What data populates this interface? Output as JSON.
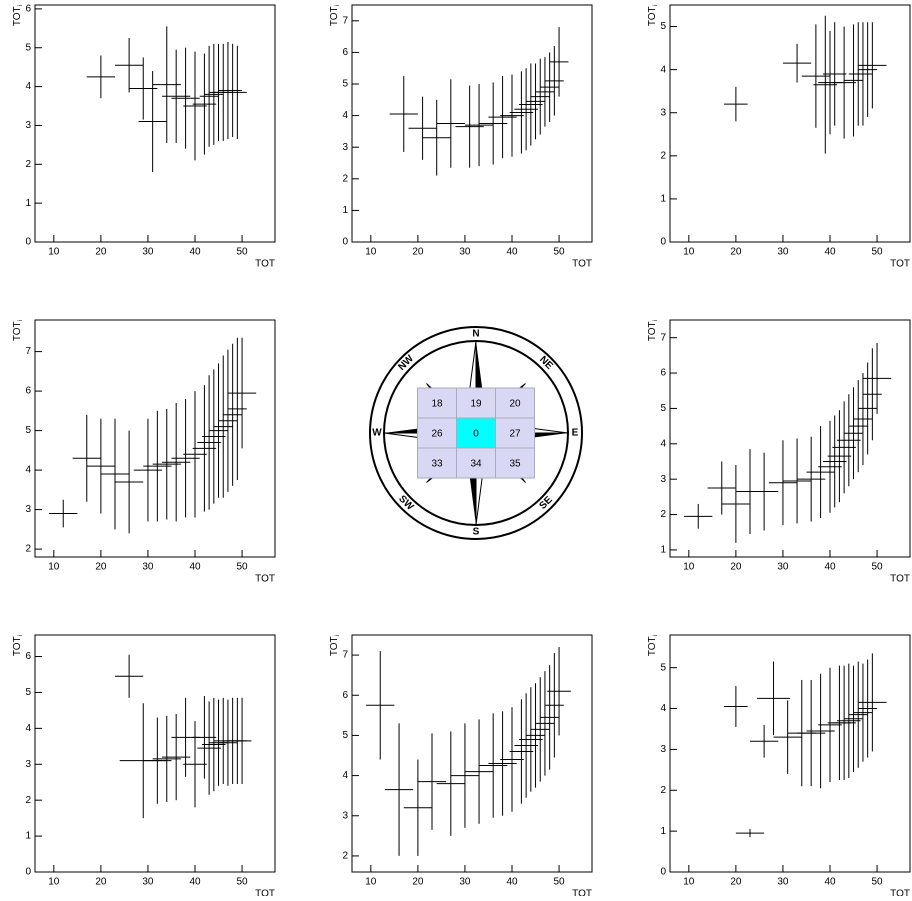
{
  "chart_data": [
    {
      "type": "errorbar",
      "x_label": "TOT",
      "y_label": "TOT",
      "y_label_sub": "i",
      "xlim": [
        6,
        57
      ],
      "ylim": [
        0,
        6.1
      ],
      "xticks": [
        10,
        20,
        30,
        40,
        50
      ],
      "yticks": [
        0,
        1,
        2,
        3,
        4,
        5,
        6
      ],
      "color": "#000000",
      "x": [
        20,
        26,
        29,
        31,
        34,
        36,
        38,
        40,
        42,
        43,
        44,
        45,
        46,
        47,
        48,
        49
      ],
      "xerr": [
        3,
        3,
        3,
        3,
        3,
        3,
        3,
        2.5,
        2.5,
        2,
        2,
        2,
        2,
        2,
        2,
        2
      ],
      "values": [
        4.25,
        4.55,
        3.95,
        3.1,
        4.05,
        3.75,
        3.7,
        3.5,
        3.55,
        3.75,
        3.8,
        3.85,
        3.85,
        3.9,
        3.9,
        3.85
      ],
      "yerr": [
        0.55,
        0.7,
        0.8,
        1.3,
        1.5,
        1.2,
        1.3,
        1.4,
        1.3,
        1.3,
        1.3,
        1.25,
        1.25,
        1.25,
        1.2,
        1.2
      ]
    },
    {
      "type": "errorbar",
      "x_label": "TOT",
      "y_label": "TOT",
      "y_label_sub": "i",
      "xlim": [
        6,
        57
      ],
      "ylim": [
        0,
        7.5
      ],
      "xticks": [
        10,
        20,
        30,
        40,
        50
      ],
      "yticks": [
        0,
        1,
        2,
        3,
        4,
        5,
        6,
        7
      ],
      "color": "#000000",
      "x": [
        17,
        21,
        24,
        27,
        31,
        33,
        36,
        38,
        40,
        42,
        43,
        44,
        45,
        46,
        47,
        48,
        49,
        50
      ],
      "xerr": [
        3,
        3,
        3,
        3,
        3,
        3,
        3,
        3,
        2.5,
        2.5,
        2.5,
        2.5,
        2,
        2,
        2,
        2,
        2,
        2
      ],
      "values": [
        4.05,
        3.6,
        3.3,
        3.75,
        3.65,
        3.7,
        3.75,
        3.95,
        4.0,
        4.1,
        4.2,
        4.35,
        4.45,
        4.6,
        4.75,
        4.9,
        5.1,
        5.7
      ],
      "yerr": [
        1.2,
        1.0,
        1.2,
        1.4,
        1.3,
        1.3,
        1.3,
        1.3,
        1.3,
        1.3,
        1.3,
        1.3,
        1.2,
        1.2,
        1.1,
        1.1,
        1.1,
        1.1
      ]
    },
    {
      "type": "errorbar",
      "x_label": "TOT",
      "y_label": "TOT",
      "y_label_sub": "i",
      "xlim": [
        6,
        57
      ],
      "ylim": [
        0,
        5.5
      ],
      "xticks": [
        10,
        20,
        30,
        40,
        50
      ],
      "yticks": [
        0,
        1,
        2,
        3,
        4,
        5
      ],
      "color": "#000000",
      "x": [
        20,
        33,
        37,
        39,
        40,
        41,
        43,
        45,
        46,
        47,
        48,
        49
      ],
      "xerr": [
        2.5,
        3,
        3,
        2.5,
        2.5,
        2.5,
        2.5,
        2,
        2,
        2,
        2,
        3
      ],
      "values": [
        3.2,
        4.15,
        3.85,
        3.65,
        3.7,
        3.9,
        3.7,
        3.75,
        3.9,
        3.9,
        4.0,
        4.1
      ],
      "yerr": [
        0.4,
        0.45,
        1.2,
        1.6,
        1.2,
        1.2,
        1.3,
        1.3,
        1.2,
        1.2,
        1.1,
        1.0
      ]
    },
    {
      "type": "errorbar",
      "x_label": "TOT",
      "y_label": "TOT",
      "y_label_sub": "i",
      "xlim": [
        6,
        57
      ],
      "ylim": [
        1.8,
        7.8
      ],
      "xticks": [
        10,
        20,
        30,
        40,
        50
      ],
      "yticks": [
        2,
        3,
        4,
        5,
        6,
        7
      ],
      "color": "#000000",
      "x": [
        12,
        17,
        20,
        23,
        26,
        30,
        32,
        34,
        36,
        38,
        40,
        42,
        43,
        44,
        45,
        46,
        47,
        48,
        49,
        50
      ],
      "xerr": [
        3,
        3,
        3,
        3,
        3,
        3,
        3,
        3,
        3,
        3,
        2.5,
        2.5,
        2.5,
        2.5,
        2,
        2,
        2,
        2,
        2,
        3
      ],
      "values": [
        2.9,
        4.3,
        4.1,
        3.9,
        3.7,
        4.0,
        4.1,
        4.15,
        4.2,
        4.3,
        4.4,
        4.55,
        4.7,
        4.85,
        5.0,
        5.1,
        5.25,
        5.4,
        5.55,
        5.95
      ],
      "yerr": [
        0.35,
        1.1,
        1.2,
        1.4,
        1.3,
        1.3,
        1.4,
        1.4,
        1.5,
        1.5,
        1.6,
        1.6,
        1.7,
        1.7,
        1.7,
        1.8,
        1.8,
        1.8,
        1.8,
        1.4
      ]
    },
    {
      "type": "errorbar",
      "x_label": "TOT",
      "y_label": "TOT",
      "y_label_sub": "i",
      "xlim": [
        6,
        57
      ],
      "ylim": [
        0.8,
        7.5
      ],
      "xticks": [
        10,
        20,
        30,
        40,
        50
      ],
      "yticks": [
        1,
        2,
        3,
        4,
        5,
        6,
        7
      ],
      "color": "#000000",
      "x": [
        12,
        17,
        20,
        23,
        26,
        30,
        33,
        36,
        38,
        40,
        41,
        42,
        43,
        44,
        45,
        46,
        47,
        48,
        49,
        50
      ],
      "xerr": [
        3,
        3,
        3,
        3,
        3,
        3,
        3,
        3,
        3,
        2.5,
        2.5,
        2.5,
        2.5,
        2.5,
        2,
        2,
        2,
        2,
        2,
        3
      ],
      "values": [
        1.95,
        2.75,
        2.3,
        2.65,
        2.65,
        2.9,
        2.95,
        3.0,
        3.2,
        3.35,
        3.5,
        3.65,
        3.9,
        4.1,
        4.3,
        4.5,
        4.7,
        5.0,
        5.4,
        5.85
      ],
      "yerr": [
        0.35,
        0.75,
        1.1,
        1.2,
        1.1,
        1.2,
        1.2,
        1.2,
        1.3,
        1.3,
        1.3,
        1.3,
        1.3,
        1.3,
        1.3,
        1.3,
        1.3,
        1.3,
        1.3,
        1.0
      ]
    },
    {
      "type": "errorbar",
      "x_label": "TOT",
      "y_label": "TOT",
      "y_label_sub": "i",
      "xlim": [
        6,
        57
      ],
      "ylim": [
        0,
        6.6
      ],
      "xticks": [
        10,
        20,
        30,
        40,
        50
      ],
      "yticks": [
        0,
        1,
        2,
        3,
        4,
        5,
        6
      ],
      "color": "#000000",
      "x": [
        26,
        29,
        32,
        34,
        36,
        38,
        40,
        42,
        43,
        44,
        45,
        46,
        47,
        48,
        49,
        50
      ],
      "xerr": [
        3,
        5,
        3,
        3,
        3,
        3,
        2.5,
        2.5,
        2.5,
        2.5,
        2,
        2,
        2,
        2,
        2,
        2
      ],
      "values": [
        5.45,
        3.1,
        3.1,
        3.15,
        3.2,
        3.75,
        3.0,
        3.75,
        3.45,
        3.55,
        3.6,
        3.65,
        3.6,
        3.65,
        3.65,
        3.65
      ],
      "yerr": [
        0.6,
        1.6,
        1.2,
        1.2,
        1.2,
        1.1,
        1.2,
        1.15,
        1.3,
        1.3,
        1.2,
        1.2,
        1.2,
        1.2,
        1.2,
        1.2
      ]
    },
    {
      "type": "errorbar",
      "x_label": "TOT",
      "y_label": "TOT",
      "y_label_sub": "i",
      "xlim": [
        6,
        57
      ],
      "ylim": [
        1.6,
        7.5
      ],
      "xticks": [
        10,
        20,
        30,
        40,
        50
      ],
      "yticks": [
        2,
        3,
        4,
        5,
        6,
        7
      ],
      "color": "#000000",
      "x": [
        12,
        16,
        20,
        23,
        27,
        30,
        33,
        36,
        38,
        40,
        42,
        43,
        44,
        45,
        46,
        47,
        48,
        49,
        50
      ],
      "xerr": [
        3,
        3,
        3,
        3,
        3,
        3,
        3,
        3,
        3,
        2.5,
        2.5,
        2.5,
        2.5,
        2,
        2,
        2,
        2,
        2,
        2.5
      ],
      "values": [
        5.75,
        3.65,
        3.2,
        3.85,
        3.8,
        4.0,
        4.1,
        4.25,
        4.3,
        4.4,
        4.6,
        4.75,
        4.9,
        5.0,
        5.15,
        5.3,
        5.45,
        5.75,
        6.1
      ],
      "yerr": [
        1.35,
        1.65,
        1.2,
        1.2,
        1.3,
        1.3,
        1.3,
        1.3,
        1.3,
        1.3,
        1.3,
        1.3,
        1.3,
        1.3,
        1.3,
        1.3,
        1.3,
        1.3,
        1.1
      ]
    },
    {
      "type": "errorbar",
      "x_label": "TOT",
      "y_label": "TOT",
      "y_label_sub": "i",
      "xlim": [
        6,
        57
      ],
      "ylim": [
        0,
        5.8
      ],
      "xticks": [
        10,
        20,
        30,
        40,
        50
      ],
      "yticks": [
        0,
        1,
        2,
        3,
        4,
        5
      ],
      "color": "#000000",
      "x": [
        20,
        23,
        26,
        28,
        31,
        34,
        36,
        38,
        40,
        42,
        43,
        44,
        45,
        46,
        47,
        48,
        49
      ],
      "xerr": [
        2.5,
        3,
        3,
        3.5,
        3,
        3,
        3,
        3,
        2.5,
        2.5,
        2.5,
        2.5,
        2,
        2,
        2,
        2,
        3
      ],
      "values": [
        4.05,
        0.95,
        3.2,
        4.25,
        3.3,
        3.4,
        3.4,
        3.45,
        3.6,
        3.65,
        3.65,
        3.7,
        3.75,
        3.85,
        3.9,
        4.0,
        4.15
      ],
      "yerr": [
        0.5,
        0.1,
        0.4,
        0.9,
        0.9,
        1.3,
        1.3,
        1.4,
        1.4,
        1.4,
        1.4,
        1.4,
        1.3,
        1.3,
        1.2,
        1.2,
        1.2
      ]
    }
  ],
  "compass": {
    "directions": [
      "N",
      "NE",
      "E",
      "SE",
      "S",
      "SW",
      "W",
      "NW"
    ],
    "cells": [
      "18",
      "19",
      "20",
      "26",
      "0",
      "27",
      "33",
      "34",
      "35"
    ]
  }
}
